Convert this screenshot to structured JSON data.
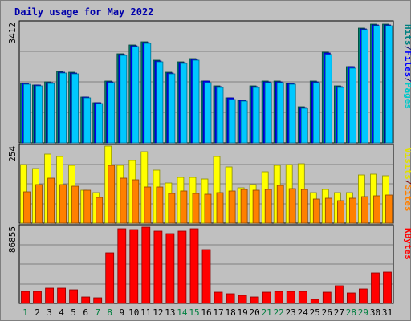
{
  "chart_data": [
    {
      "type": "bar",
      "title": "Daily usage for May 2022",
      "categories": [
        "1",
        "2",
        "3",
        "4",
        "5",
        "6",
        "7",
        "8",
        "9",
        "10",
        "11",
        "12",
        "13",
        "14",
        "15",
        "16",
        "17",
        "18",
        "19",
        "20",
        "21",
        "22",
        "23",
        "24",
        "25",
        "26",
        "27",
        "28",
        "29",
        "30",
        "31"
      ],
      "weekend_days": [
        "1",
        "7",
        "8",
        "14",
        "15",
        "21",
        "22",
        "28",
        "29"
      ],
      "panels": [
        {
          "id": "hits-panel",
          "ymax_label": "3412",
          "ymax": 3412,
          "right_labels": [
            {
              "text": "Pages",
              "color": "#00c8c8"
            },
            {
              "text": "/",
              "color": "#000080"
            },
            {
              "text": "Files",
              "color": "#0000ff"
            },
            {
              "text": "/",
              "color": "#000080"
            },
            {
              "text": "Hits",
              "color": "#008080"
            }
          ],
          "series": [
            {
              "name": "Hits",
              "color": "#00806c",
              "values": [
                1717,
                1671,
                1752,
                2048,
                2030,
                1324,
                1163,
                1771,
                2565,
                2816,
                2903,
                2380,
                2031,
                2320,
                2417,
                1782,
                1630,
                1292,
                1232,
                1626,
                1771,
                1771,
                1716,
                1031,
                1771,
                2598,
                1626,
                2201,
                3304,
                3412,
                3412
              ]
            },
            {
              "name": "Files",
              "color": "#0000ff",
              "values": [
                1700,
                1655,
                1735,
                2030,
                2012,
                1310,
                1150,
                1755,
                2545,
                2795,
                2880,
                2360,
                2015,
                2300,
                2395,
                1765,
                1615,
                1280,
                1220,
                1610,
                1755,
                1755,
                1700,
                1020,
                1755,
                2575,
                1610,
                2180,
                3280,
                3395,
                3395
              ]
            },
            {
              "name": "Pages",
              "color": "#00c8ff",
              "values": [
                1672,
                1627,
                1707,
                1999,
                1981,
                1285,
                1126,
                1726,
                2515,
                2769,
                2853,
                2335,
                1990,
                2275,
                2370,
                1737,
                1586,
                1256,
                1196,
                1583,
                1726,
                1726,
                1672,
                995,
                1726,
                2547,
                1583,
                2150,
                3257,
                3367,
                3367
              ]
            }
          ]
        },
        {
          "id": "visits-panel",
          "ymax_label": "254",
          "ymax": 254,
          "right_labels": [
            {
              "text": "Sites",
              "color": "#ff8000"
            },
            {
              "text": "/",
              "color": "#800000"
            },
            {
              "text": "Visits",
              "color": "#e0e000"
            }
          ],
          "series": [
            {
              "name": "Visits",
              "color": "#ffff00",
              "values": [
                196,
                185,
                232,
                223,
                194,
                110,
                103,
                260,
                194,
                212,
                240,
                178,
                135,
                154,
                154,
                149,
                223,
                189,
                119,
                131,
                172,
                194,
                198,
                200,
                102,
                114,
                102,
                103,
                161,
                164,
                160
              ]
            },
            {
              "name": "Sites",
              "color": "#ff8000",
              "values": [
                106,
                131,
                150,
                131,
                125,
                112,
                86,
                194,
                151,
                146,
                122,
                122,
                100,
                108,
                100,
                97,
                103,
                109,
                113,
                112,
                114,
                126,
                116,
                114,
                82,
                85,
                77,
                83,
                88,
                91,
                95
              ]
            }
          ]
        },
        {
          "id": "kbytes-panel",
          "ymax_label": "86855",
          "ymax": 86855,
          "right_labels": [
            {
              "text": "KBytes",
              "color": "#ff0000"
            }
          ],
          "series": [
            {
              "name": "KBytes",
              "color": "#ff0000",
              "values": [
                14000,
                14000,
                17500,
                17500,
                16000,
                7500,
                6500,
                58000,
                86000,
                85000,
                88000,
                83000,
                80000,
                83000,
                86000,
                62000,
                13000,
                11000,
                9000,
                7500,
                13000,
                13500,
                13500,
                13500,
                4500,
                13000,
                20000,
                12000,
                17000,
                35000,
                36000
              ]
            }
          ]
        }
      ]
    }
  ]
}
